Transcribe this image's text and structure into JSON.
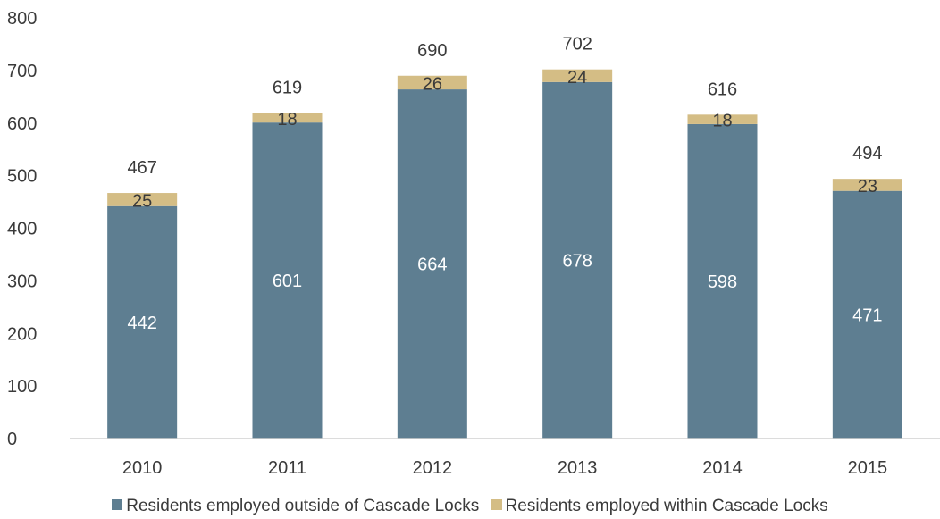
{
  "chart_data": {
    "type": "bar",
    "stacked": true,
    "categories": [
      "2010",
      "2011",
      "2012",
      "2013",
      "2014",
      "2015"
    ],
    "series": [
      {
        "name": "Residents employed outside of Cascade Locks",
        "values": [
          442,
          601,
          664,
          678,
          598,
          471
        ],
        "color": "#5e7e91"
      },
      {
        "name": "Residents employed within Cascade Locks",
        "values": [
          25,
          18,
          26,
          24,
          18,
          23
        ],
        "color": "#d4bd85"
      }
    ],
    "totals": [
      467,
      619,
      690,
      702,
      616,
      494
    ],
    "ylim": [
      0,
      800
    ],
    "yticks": [
      "0",
      "100",
      "200",
      "300",
      "400",
      "500",
      "600",
      "700",
      "800"
    ],
    "grid": false,
    "legend_position": "bottom"
  }
}
